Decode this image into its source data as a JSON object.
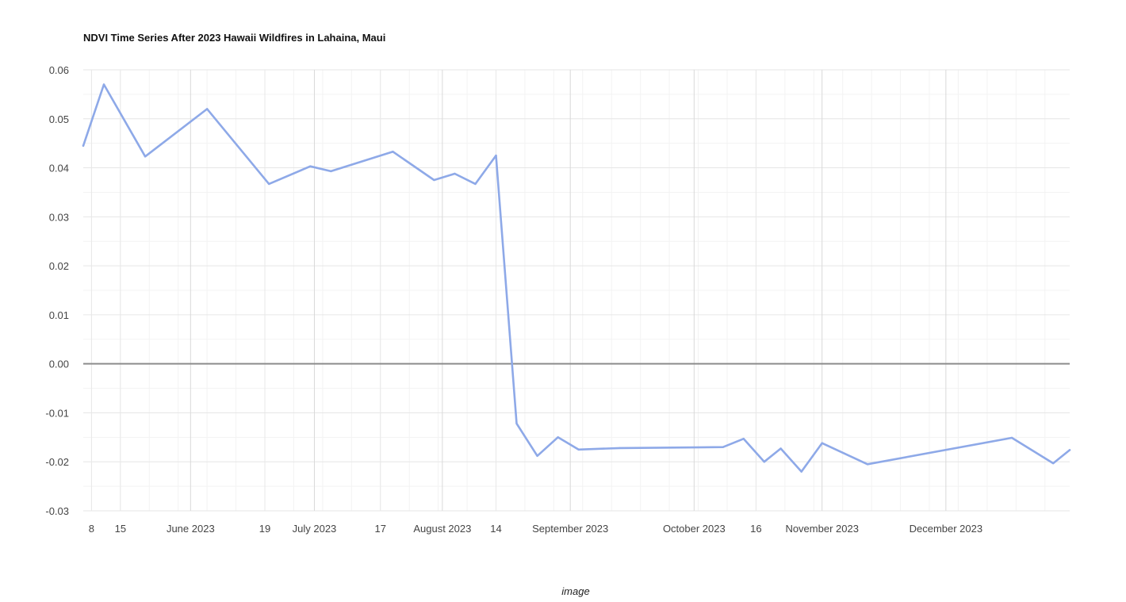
{
  "chart_data": {
    "type": "line",
    "title": "NDVI Time Series After 2023 Hawaii Wildfires in Lahaina, Maui",
    "xlabel": "image",
    "ylabel": "",
    "x_type": "date",
    "xlim": [
      "2023-05-06",
      "2023-12-31"
    ],
    "ylim": [
      -0.03,
      0.06
    ],
    "y_ticks": [
      0.06,
      0.05,
      0.04,
      0.03,
      0.02,
      0.01,
      0.0,
      -0.01,
      -0.02,
      -0.03
    ],
    "y_tick_labels": [
      "0.06",
      "0.05",
      "0.04",
      "0.03",
      "0.02",
      "0.01",
      "0.00",
      "-0.01",
      "-0.02",
      "-0.03"
    ],
    "x_ticks": [
      {
        "date": "2023-05-08",
        "label": "8"
      },
      {
        "date": "2023-05-15",
        "label": "15"
      },
      {
        "date": "2023-06-01",
        "label": "June 2023"
      },
      {
        "date": "2023-06-19",
        "label": "19"
      },
      {
        "date": "2023-07-01",
        "label": "July 2023"
      },
      {
        "date": "2023-07-17",
        "label": "17"
      },
      {
        "date": "2023-08-01",
        "label": "August 2023"
      },
      {
        "date": "2023-08-14",
        "label": "14"
      },
      {
        "date": "2023-09-01",
        "label": "September 2023"
      },
      {
        "date": "2023-10-01",
        "label": "October 2023"
      },
      {
        "date": "2023-10-16",
        "label": "16"
      },
      {
        "date": "2023-11-01",
        "label": "November 2023"
      },
      {
        "date": "2023-12-01",
        "label": "December 2023"
      }
    ],
    "grid": true,
    "legend": "none",
    "color": "#8ea9e8",
    "series": [
      {
        "x": [
          "2023-05-06",
          "2023-05-11",
          "2023-05-21",
          "2023-06-05",
          "2023-06-20",
          "2023-06-30",
          "2023-07-05",
          "2023-07-20",
          "2023-07-30",
          "2023-08-04",
          "2023-08-09",
          "2023-08-14",
          "2023-08-19",
          "2023-08-24",
          "2023-08-29",
          "2023-09-03",
          "2023-09-13",
          "2023-10-08",
          "2023-10-13",
          "2023-10-18",
          "2023-10-22",
          "2023-10-27",
          "2023-11-01",
          "2023-11-12",
          "2023-12-17",
          "2023-12-27",
          "2023-12-31"
        ],
        "y": [
          0.0445,
          0.057,
          0.0423,
          0.052,
          0.0367,
          0.0403,
          0.0393,
          0.0433,
          0.0375,
          0.0388,
          0.0367,
          0.0425,
          -0.0122,
          -0.0188,
          -0.015,
          -0.0175,
          -0.0172,
          -0.017,
          -0.0153,
          -0.02,
          -0.0173,
          -0.022,
          -0.0162,
          -0.0205,
          -0.0151,
          -0.0203,
          -0.0176
        ]
      }
    ]
  }
}
